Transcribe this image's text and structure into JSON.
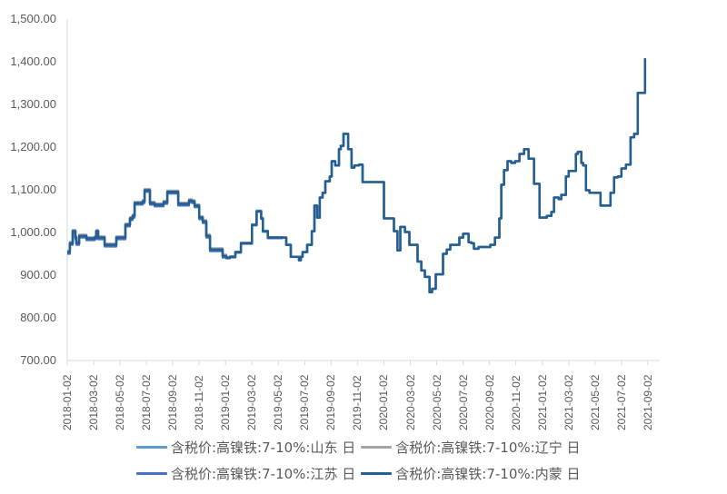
{
  "chart_data": {
    "type": "line",
    "title": "",
    "xlabel": "",
    "ylabel": "",
    "ylim": [
      700,
      1500
    ],
    "y_ticks": [
      "1,500.00",
      "1,400.00",
      "1,300.00",
      "1,200.00",
      "1,100.00",
      "1,000.00",
      "900.00",
      "800.00",
      "700.00"
    ],
    "x_ticks": [
      "2018-01-02",
      "2018-03-02",
      "2018-05-02",
      "2018-07-02",
      "2018-09-02",
      "2018-11-02",
      "2019-01-02",
      "2019-03-02",
      "2019-05-02",
      "2019-07-02",
      "2019-09-02",
      "2019-11-02",
      "2020-01-02",
      "2020-03-02",
      "2020-05-02",
      "2020-07-02",
      "2020-09-02",
      "2020-11-02",
      "2021-01-02",
      "2021-03-02",
      "2021-05-02",
      "2021-07-02",
      "2021-09-02"
    ],
    "grid": false,
    "legend_position": "bottom",
    "series": [
      {
        "name": "含税价:高镍铁:7-10%:山东 日",
        "color": "#5b9bd5",
        "offset": 2
      },
      {
        "name": "含税价:高镍铁:7-10%:辽宁 日",
        "color": "#a5a5a5",
        "offset": 3
      },
      {
        "name": "含税价:高镍铁:7-10%:江苏 日",
        "color": "#4472c4",
        "offset": -4
      },
      {
        "name": "含税价:高镍铁:7-10%:内蒙 日",
        "color": "#255e91",
        "offset": 0
      }
    ],
    "x_month_index": [
      0,
      0.2,
      0.41,
      0.62,
      0.69,
      0.9,
      1.1,
      1.45,
      2.07,
      2.2,
      2.34,
      2.69,
      2.83,
      3.52,
      3.72,
      4.2,
      4.41,
      4.75,
      4.96,
      5.1,
      5.58,
      5.72,
      5.86,
      6.27,
      6.62,
      7.3,
      7.58,
      8.27,
      8.41,
      9.03,
      9.23,
      9.44,
      9.65,
      10.0,
      10.27,
      10.54,
      10.82,
      11.78,
      12.05,
      12.33,
      12.74,
      13.16,
      13.57,
      14.0,
      14.35,
      14.7,
      14.83,
      15.2,
      16.3,
      16.6,
      16.94,
      17.22,
      17.56,
      17.7,
      17.84,
      18.18,
      18.53,
      18.73,
      18.94,
      19.14,
      19.35,
      19.56,
      19.9,
      20.04,
      20.31,
      20.59,
      20.73,
      20.94,
      21.29,
      21.55,
      21.76,
      22.11,
      22.38,
      24.0,
      24.76,
      25.03,
      25.24,
      25.59,
      25.93,
      26.27,
      26.55,
      26.83,
      27.1,
      27.45,
      27.65,
      27.93,
      28.48,
      28.76,
      29.03,
      29.72,
      30.0,
      30.41,
      30.62,
      30.82,
      31.17,
      32.06,
      32.41,
      32.75,
      32.89,
      33.1,
      33.37,
      33.65,
      33.93,
      34.27,
      34.62,
      34.96,
      35.37,
      35.79,
      36.34,
      36.69,
      36.89,
      37.24,
      37.44,
      37.79,
      38.0,
      38.55,
      38.69,
      38.96,
      39.1,
      39.31,
      39.58,
      39.93,
      40.41,
      40.75,
      41.17,
      41.44,
      41.72,
      42.0,
      42.34,
      42.69,
      42.96,
      43.24,
      43.79
    ],
    "values": [
      954,
      975,
      1003,
      988,
      975,
      992,
      992,
      986,
      988,
      1003,
      988,
      988,
      971,
      971,
      988,
      988,
      1018,
      1033,
      1039,
      1069,
      1069,
      1073,
      1099,
      1069,
      1065,
      1071,
      1095,
      1095,
      1067,
      1067,
      1075,
      1073,
      1063,
      1035,
      1026,
      992,
      960,
      945,
      941,
      943,
      954,
      975,
      975,
      1018,
      1050,
      1033,
      1003,
      988,
      988,
      971,
      943,
      943,
      935,
      943,
      954,
      971,
      1003,
      1063,
      1035,
      1082,
      1093,
      1120,
      1131,
      1167,
      1157,
      1195,
      1203,
      1231,
      1195,
      1152,
      1157,
      1159,
      1118,
      1033,
      1003,
      958,
      1013,
      1001,
      971,
      971,
      932,
      911,
      896,
      860,
      868,
      902,
      950,
      960,
      971,
      988,
      997,
      977,
      975,
      962,
      966,
      971,
      988,
      1033,
      1112,
      1146,
      1167,
      1163,
      1167,
      1184,
      1195,
      1173,
      1114,
      1035,
      1039,
      1048,
      1082,
      1078,
      1088,
      1131,
      1144,
      1184,
      1189,
      1163,
      1157,
      1099,
      1093,
      1093,
      1063,
      1063,
      1093,
      1129,
      1131,
      1150,
      1159,
      1223,
      1231,
      1327,
      1408,
      1393,
      1404,
      1429,
      1436,
      1461,
      1461
    ]
  }
}
